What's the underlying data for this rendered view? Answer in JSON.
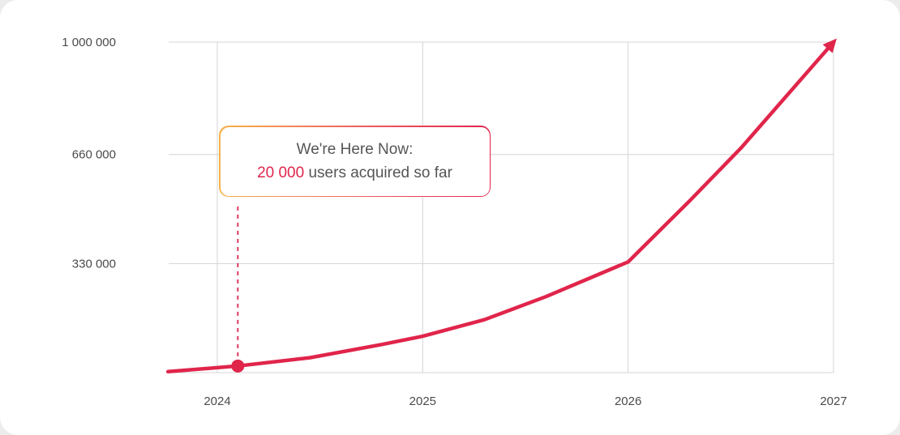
{
  "chart_data": {
    "type": "line",
    "title": "",
    "xlabel": "",
    "ylabel": "",
    "x_ticks": [
      "2024",
      "2025",
      "2026",
      "2027"
    ],
    "y_ticks": [
      "330 000",
      "660 000",
      "1 000 000"
    ],
    "xlim": [
      2023.76,
      2027
    ],
    "ylim": [
      0,
      1000000
    ],
    "grid": true,
    "line_color": "#e0254b",
    "series": [
      {
        "x": [
          2023.76,
          2024.1,
          2024.45,
          2024.8,
          2025.0,
          2025.3,
          2025.6,
          2026.0,
          2026.3,
          2026.55,
          2027.0
        ],
        "y": [
          3000,
          20000,
          45000,
          85000,
          110000,
          160000,
          230000,
          335000,
          520000,
          680000,
          1000000
        ]
      }
    ],
    "marker": {
      "x": 2024.1,
      "y": 20000
    },
    "annotation": {
      "line1": "We're Here Now:",
      "highlight": "20 000",
      "rest": " users acquired so far"
    }
  }
}
